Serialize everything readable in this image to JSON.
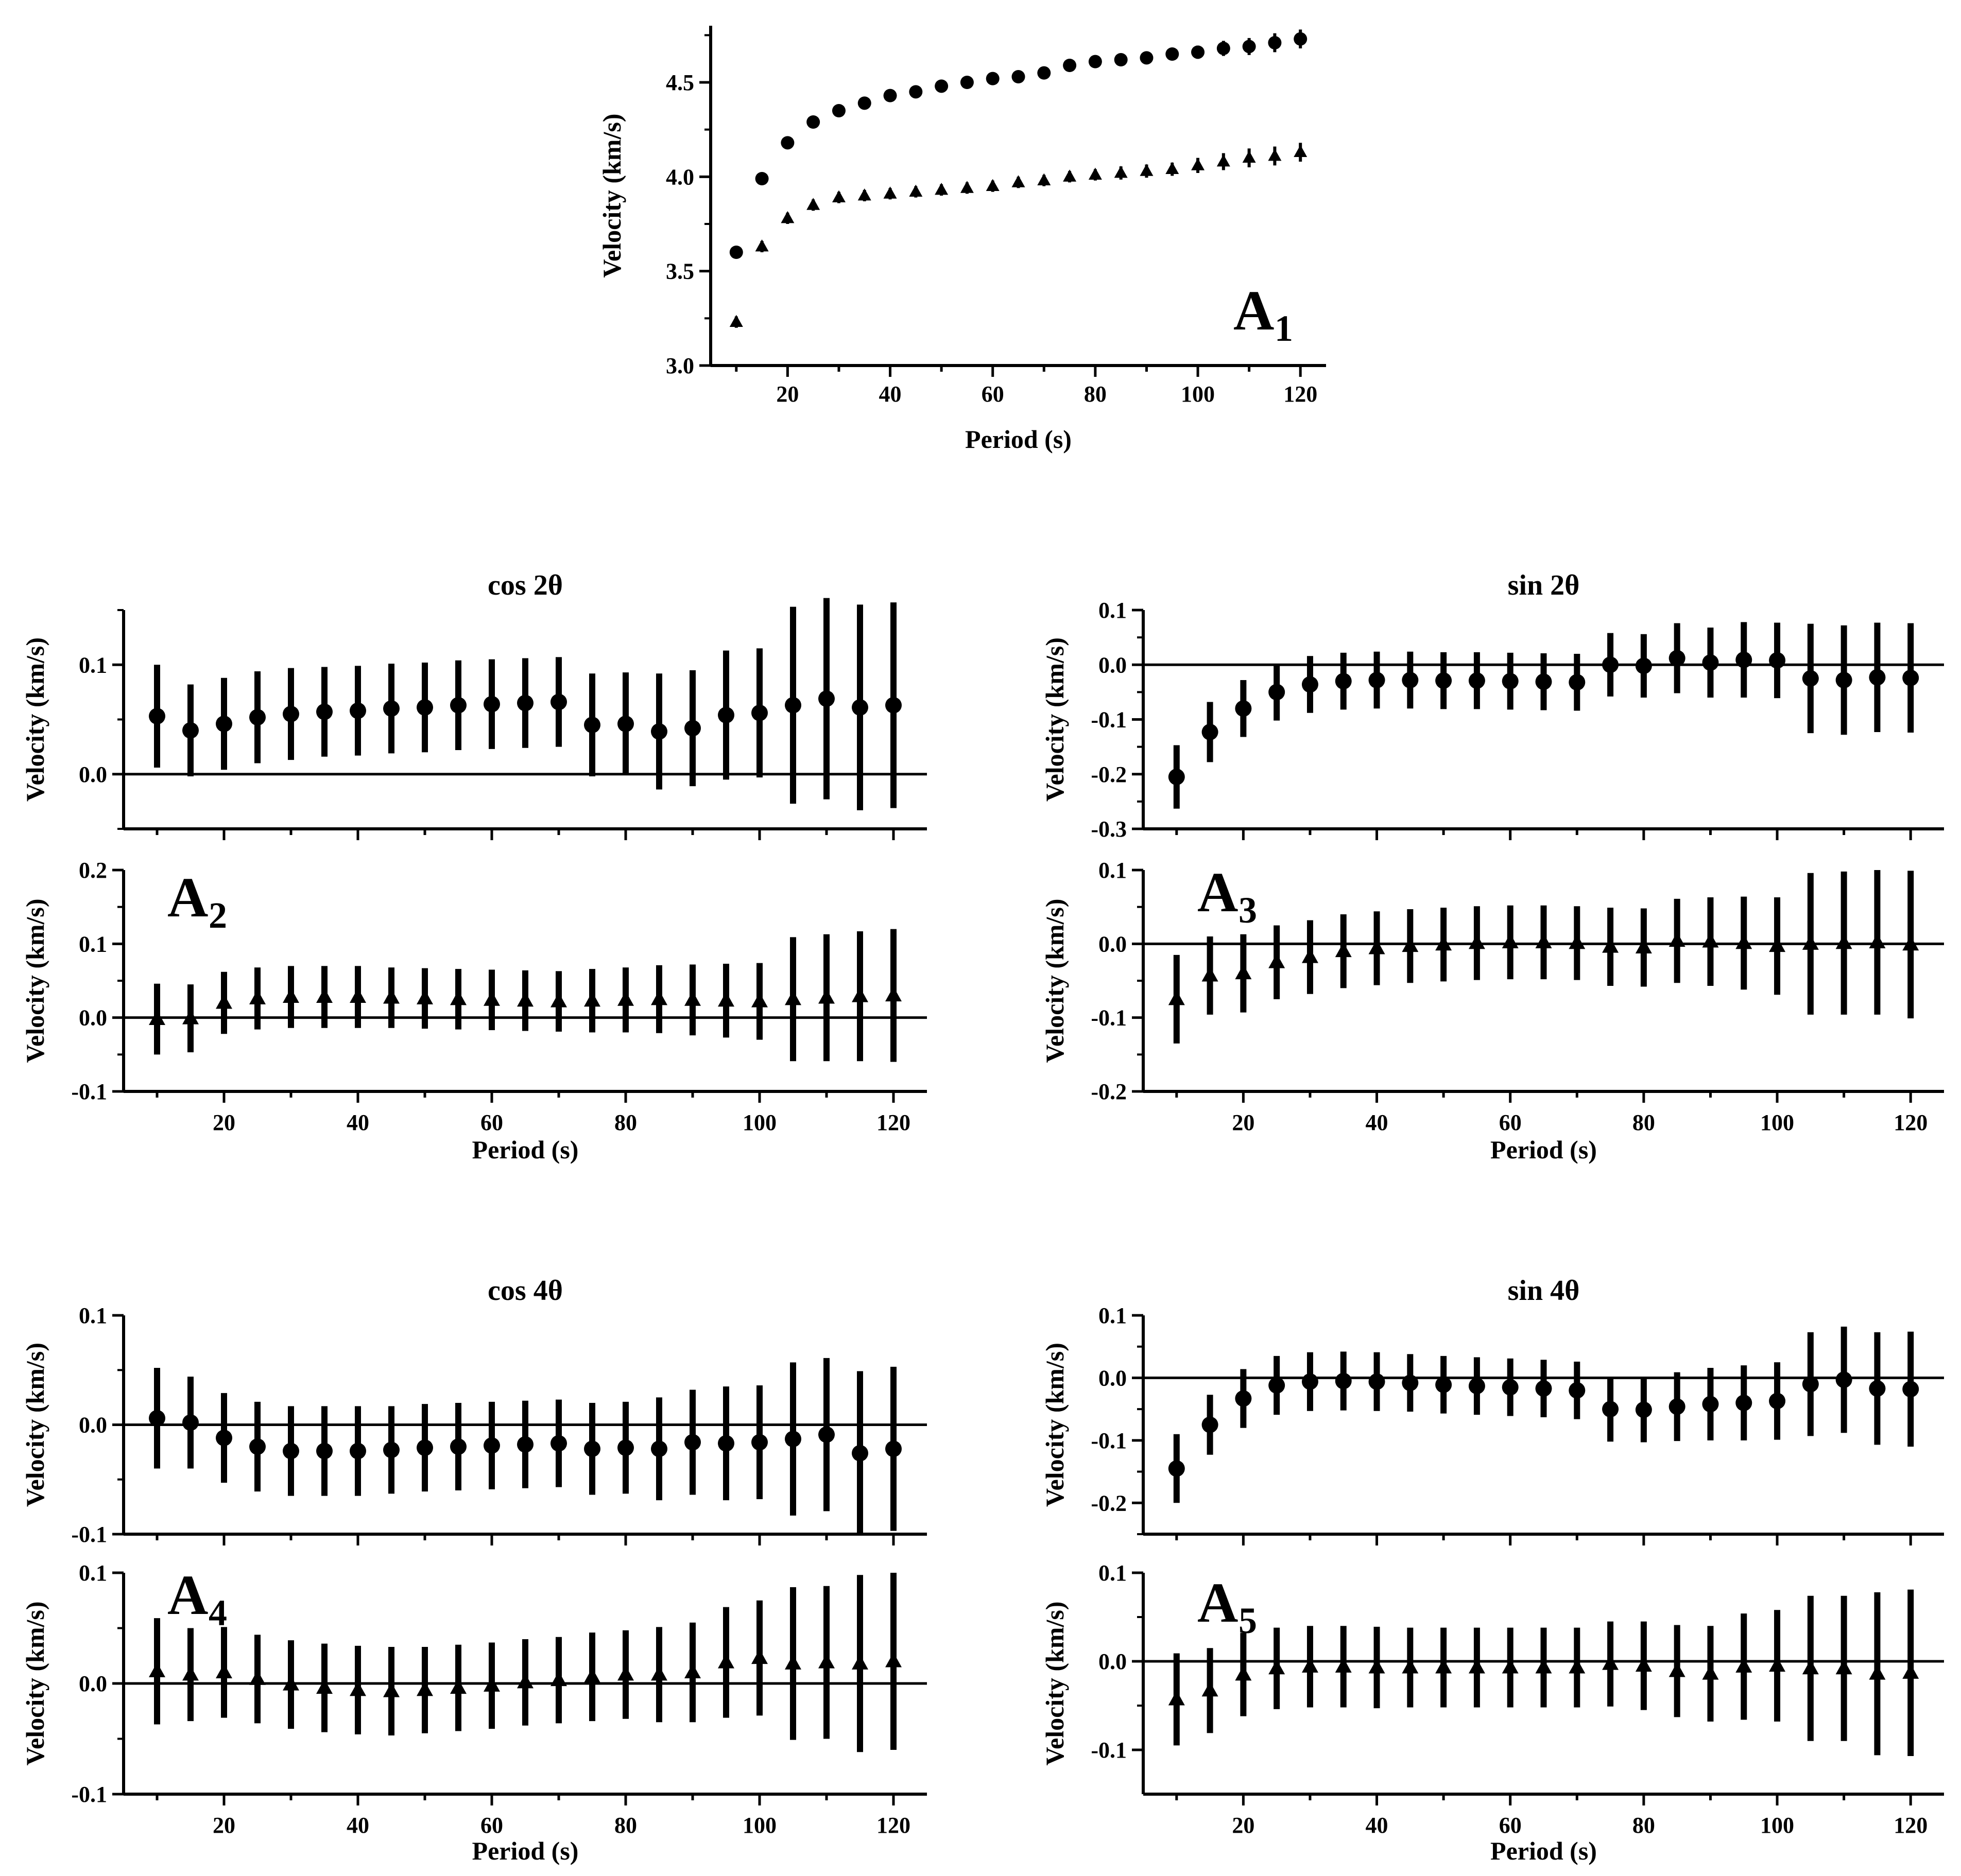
{
  "chart_data": [
    {
      "id": "A1",
      "type": "scatter",
      "title": "",
      "panel_label": "A",
      "panel_label_sub": "1",
      "xlabel": "Period (s)",
      "ylabel": "Velocity (km/s)",
      "xlim": [
        5,
        125
      ],
      "ylim": [
        3.0,
        4.8
      ],
      "xticks": [
        20,
        40,
        60,
        80,
        100,
        120
      ],
      "yticks": [
        3.0,
        3.5,
        4.0,
        4.5
      ],
      "x": [
        10,
        15,
        20,
        25,
        30,
        35,
        40,
        45,
        50,
        55,
        60,
        65,
        70,
        75,
        80,
        85,
        90,
        95,
        100,
        105,
        110,
        115,
        120
      ],
      "series": [
        {
          "name": "circles",
          "marker": "circle",
          "values": [
            3.6,
            3.99,
            4.18,
            4.29,
            4.35,
            4.39,
            4.43,
            4.45,
            4.48,
            4.5,
            4.52,
            4.53,
            4.55,
            4.59,
            4.61,
            4.62,
            4.63,
            4.65,
            4.66,
            4.68,
            4.69,
            4.71,
            4.73
          ],
          "errors": [
            0.02,
            0.02,
            0.02,
            0.02,
            0.02,
            0.02,
            0.02,
            0.02,
            0.02,
            0.02,
            0.02,
            0.02,
            0.02,
            0.025,
            0.025,
            0.03,
            0.03,
            0.03,
            0.035,
            0.04,
            0.045,
            0.05,
            0.05
          ]
        },
        {
          "name": "triangles",
          "marker": "triangle",
          "values": [
            3.23,
            3.63,
            3.78,
            3.85,
            3.89,
            3.9,
            3.91,
            3.92,
            3.93,
            3.94,
            3.95,
            3.97,
            3.98,
            4.0,
            4.01,
            4.02,
            4.03,
            4.04,
            4.06,
            4.08,
            4.1,
            4.11,
            4.13
          ],
          "errors": [
            0.03,
            0.03,
            0.03,
            0.03,
            0.03,
            0.03,
            0.03,
            0.03,
            0.03,
            0.03,
            0.03,
            0.03,
            0.03,
            0.03,
            0.03,
            0.035,
            0.035,
            0.035,
            0.04,
            0.045,
            0.05,
            0.05,
            0.05
          ]
        }
      ]
    },
    {
      "id": "A2-top",
      "type": "scatter",
      "title": "cos 2θ",
      "xlabel": "",
      "ylabel": "Velocity (km/s)",
      "xlim": [
        5,
        125
      ],
      "ylim": [
        -0.05,
        0.15
      ],
      "yticks": [
        0.0,
        0.1
      ],
      "zero_line": true,
      "x": [
        10,
        15,
        20,
        25,
        30,
        35,
        40,
        45,
        50,
        55,
        60,
        65,
        70,
        75,
        80,
        85,
        90,
        95,
        100,
        105,
        110,
        115,
        120
      ],
      "series": [
        {
          "name": "circles",
          "marker": "circle",
          "values": [
            0.053,
            0.04,
            0.046,
            0.052,
            0.055,
            0.057,
            0.058,
            0.06,
            0.061,
            0.063,
            0.064,
            0.065,
            0.066,
            0.045,
            0.046,
            0.039,
            0.042,
            0.054,
            0.056,
            0.063,
            0.069,
            0.061,
            0.063
          ],
          "errors": [
            0.047,
            0.042,
            0.042,
            0.042,
            0.042,
            0.041,
            0.041,
            0.041,
            0.041,
            0.041,
            0.041,
            0.041,
            0.041,
            0.047,
            0.047,
            0.053,
            0.053,
            0.059,
            0.059,
            0.09,
            0.092,
            0.094,
            0.094
          ]
        }
      ]
    },
    {
      "id": "A2-bottom",
      "type": "scatter",
      "title": "",
      "panel_label": "A",
      "panel_label_sub": "2",
      "xlabel": "Period (s)",
      "ylabel": "Velocity (km/s)",
      "xlim": [
        5,
        125
      ],
      "ylim": [
        -0.1,
        0.2
      ],
      "xticks": [
        20,
        40,
        60,
        80,
        100,
        120
      ],
      "yticks": [
        -0.1,
        0.0,
        0.1,
        0.2
      ],
      "zero_line": true,
      "x": [
        10,
        15,
        20,
        25,
        30,
        35,
        40,
        45,
        50,
        55,
        60,
        65,
        70,
        75,
        80,
        85,
        90,
        95,
        100,
        105,
        110,
        115,
        120
      ],
      "series": [
        {
          "name": "triangles",
          "marker": "triangle",
          "values": [
            -0.002,
            -0.001,
            0.02,
            0.026,
            0.028,
            0.028,
            0.028,
            0.027,
            0.026,
            0.025,
            0.024,
            0.023,
            0.022,
            0.023,
            0.024,
            0.025,
            0.024,
            0.023,
            0.022,
            0.025,
            0.027,
            0.029,
            0.03
          ],
          "errors": [
            0.048,
            0.046,
            0.042,
            0.042,
            0.042,
            0.042,
            0.042,
            0.041,
            0.041,
            0.041,
            0.041,
            0.041,
            0.041,
            0.043,
            0.044,
            0.046,
            0.048,
            0.05,
            0.052,
            0.084,
            0.086,
            0.088,
            0.09
          ]
        }
      ]
    },
    {
      "id": "A3-top",
      "type": "scatter",
      "title": "sin 2θ",
      "xlabel": "",
      "ylabel": "Velocity (km/s)",
      "xlim": [
        5,
        125
      ],
      "ylim": [
        -0.3,
        0.1
      ],
      "yticks": [
        -0.3,
        -0.2,
        -0.1,
        0.0,
        0.1
      ],
      "zero_line": true,
      "x": [
        10,
        15,
        20,
        25,
        30,
        35,
        40,
        45,
        50,
        55,
        60,
        65,
        70,
        75,
        80,
        85,
        90,
        95,
        100,
        105,
        110,
        115,
        120
      ],
      "series": [
        {
          "name": "circles",
          "marker": "circle",
          "values": [
            -0.205,
            -0.123,
            -0.08,
            -0.05,
            -0.036,
            -0.03,
            -0.028,
            -0.028,
            -0.029,
            -0.029,
            -0.03,
            -0.031,
            -0.032,
            0.0,
            -0.002,
            0.012,
            0.004,
            0.009,
            0.008,
            -0.025,
            -0.028,
            -0.023,
            -0.024
          ]
        },
        {
          "name": "errors",
          "marker": "none",
          "values": [
            0.058,
            0.055,
            0.052,
            0.052,
            0.052,
            0.052,
            0.052,
            0.052,
            0.052,
            0.052,
            0.052,
            0.052,
            0.052,
            0.058,
            0.058,
            0.064,
            0.064,
            0.069,
            0.069,
            0.1,
            0.1,
            0.1,
            0.1
          ]
        }
      ]
    },
    {
      "id": "A3-bottom",
      "type": "scatter",
      "title": "",
      "panel_label": "A",
      "panel_label_sub": "3",
      "xlabel": "Period (s)",
      "ylabel": "Velocity (km/s)",
      "xlim": [
        5,
        125
      ],
      "ylim": [
        -0.2,
        0.1
      ],
      "xticks": [
        20,
        40,
        60,
        80,
        100,
        120
      ],
      "yticks": [
        -0.2,
        -0.1,
        0.0,
        0.1
      ],
      "zero_line": true,
      "x": [
        10,
        15,
        20,
        25,
        30,
        35,
        40,
        45,
        50,
        55,
        60,
        65,
        70,
        75,
        80,
        85,
        90,
        95,
        100,
        105,
        110,
        115,
        120
      ],
      "series": [
        {
          "name": "triangles",
          "marker": "triangle",
          "values": [
            -0.075,
            -0.043,
            -0.04,
            -0.025,
            -0.018,
            -0.01,
            -0.006,
            -0.003,
            -0.001,
            0.001,
            0.002,
            0.002,
            0.001,
            -0.004,
            -0.005,
            0.004,
            0.003,
            0.001,
            -0.003,
            0.0,
            0.001,
            0.002,
            -0.001
          ]
        },
        {
          "name": "errors",
          "marker": "none",
          "values": [
            0.06,
            0.053,
            0.053,
            0.05,
            0.05,
            0.05,
            0.05,
            0.05,
            0.05,
            0.05,
            0.05,
            0.05,
            0.05,
            0.053,
            0.053,
            0.057,
            0.06,
            0.063,
            0.066,
            0.096,
            0.097,
            0.098,
            0.1
          ]
        }
      ]
    },
    {
      "id": "A4-top",
      "type": "scatter",
      "title": "cos 4θ",
      "xlabel": "",
      "ylabel": "Velocity (km/s)",
      "xlim": [
        5,
        125
      ],
      "ylim": [
        -0.1,
        0.1
      ],
      "yticks": [
        -0.1,
        0.0,
        0.1
      ],
      "zero_line": true,
      "x": [
        10,
        15,
        20,
        25,
        30,
        35,
        40,
        45,
        50,
        55,
        60,
        65,
        70,
        75,
        80,
        85,
        90,
        95,
        100,
        105,
        110,
        115,
        120
      ],
      "series": [
        {
          "name": "circles",
          "marker": "circle",
          "values": [
            0.006,
            0.002,
            -0.012,
            -0.02,
            -0.024,
            -0.024,
            -0.024,
            -0.023,
            -0.021,
            -0.02,
            -0.019,
            -0.018,
            -0.017,
            -0.022,
            -0.021,
            -0.022,
            -0.016,
            -0.017,
            -0.016,
            -0.013,
            -0.009,
            -0.026,
            -0.022
          ]
        },
        {
          "name": "errors",
          "marker": "none",
          "values": [
            0.046,
            0.042,
            0.041,
            0.041,
            0.041,
            0.041,
            0.041,
            0.04,
            0.04,
            0.04,
            0.04,
            0.04,
            0.04,
            0.042,
            0.042,
            0.047,
            0.048,
            0.052,
            0.052,
            0.07,
            0.07,
            0.075,
            0.075
          ]
        }
      ]
    },
    {
      "id": "A4-bottom",
      "type": "scatter",
      "title": "",
      "panel_label": "A",
      "panel_label_sub": "4",
      "xlabel": "Period (s)",
      "ylabel": "Velocity (km/s)",
      "xlim": [
        5,
        125
      ],
      "ylim": [
        -0.1,
        0.1
      ],
      "xticks": [
        20,
        40,
        60,
        80,
        100,
        120
      ],
      "yticks": [
        -0.1,
        0.0,
        0.1
      ],
      "zero_line": true,
      "x": [
        10,
        15,
        20,
        25,
        30,
        35,
        40,
        45,
        50,
        55,
        60,
        65,
        70,
        75,
        80,
        85,
        90,
        95,
        100,
        105,
        110,
        115,
        120
      ],
      "series": [
        {
          "name": "triangles",
          "marker": "triangle",
          "values": [
            0.011,
            0.008,
            0.01,
            0.004,
            -0.001,
            -0.004,
            -0.006,
            -0.007,
            -0.006,
            -0.004,
            -0.002,
            0.001,
            0.003,
            0.006,
            0.008,
            0.008,
            0.01,
            0.019,
            0.023,
            0.018,
            0.019,
            0.018,
            0.02
          ]
        },
        {
          "name": "errors",
          "marker": "none",
          "values": [
            0.048,
            0.042,
            0.041,
            0.04,
            0.04,
            0.04,
            0.04,
            0.04,
            0.039,
            0.039,
            0.039,
            0.039,
            0.039,
            0.04,
            0.04,
            0.043,
            0.045,
            0.05,
            0.052,
            0.069,
            0.069,
            0.08,
            0.08
          ]
        }
      ]
    },
    {
      "id": "A5-top",
      "type": "scatter",
      "title": "sin 4θ",
      "xlabel": "",
      "ylabel": "Velocity (km/s)",
      "xlim": [
        5,
        125
      ],
      "ylim": [
        -0.25,
        0.1
      ],
      "yticks": [
        -0.2,
        -0.1,
        0.0,
        0.1
      ],
      "zero_line": true,
      "x": [
        10,
        15,
        20,
        25,
        30,
        35,
        40,
        45,
        50,
        55,
        60,
        65,
        70,
        75,
        80,
        85,
        90,
        95,
        100,
        105,
        110,
        115,
        120
      ],
      "series": [
        {
          "name": "circles",
          "marker": "circle",
          "values": [
            -0.145,
            -0.075,
            -0.033,
            -0.012,
            -0.006,
            -0.005,
            -0.006,
            -0.008,
            -0.011,
            -0.013,
            -0.015,
            -0.017,
            -0.02,
            -0.05,
            -0.051,
            -0.046,
            -0.042,
            -0.04,
            -0.037,
            -0.01,
            -0.003,
            -0.017,
            -0.018
          ]
        },
        {
          "name": "errors",
          "marker": "none",
          "values": [
            0.055,
            0.048,
            0.047,
            0.047,
            0.047,
            0.047,
            0.047,
            0.046,
            0.046,
            0.046,
            0.046,
            0.046,
            0.046,
            0.052,
            0.052,
            0.055,
            0.058,
            0.06,
            0.062,
            0.083,
            0.085,
            0.09,
            0.092
          ]
        }
      ]
    },
    {
      "id": "A5-bottom",
      "type": "scatter",
      "title": "",
      "panel_label": "A",
      "panel_label_sub": "5",
      "xlabel": "Period (s)",
      "ylabel": "Velocity (km/s)",
      "xlim": [
        5,
        125
      ],
      "ylim": [
        -0.15,
        0.1
      ],
      "xticks": [
        20,
        40,
        60,
        80,
        100,
        120
      ],
      "yticks": [
        -0.1,
        0.0,
        0.1
      ],
      "zero_line": true,
      "x": [
        10,
        15,
        20,
        25,
        30,
        35,
        40,
        45,
        50,
        55,
        60,
        65,
        70,
        75,
        80,
        85,
        90,
        95,
        100,
        105,
        110,
        115,
        120
      ],
      "series": [
        {
          "name": "triangles",
          "marker": "triangle",
          "values": [
            -0.043,
            -0.033,
            -0.015,
            -0.008,
            -0.006,
            -0.006,
            -0.007,
            -0.007,
            -0.007,
            -0.007,
            -0.007,
            -0.007,
            -0.007,
            -0.003,
            -0.005,
            -0.011,
            -0.014,
            -0.006,
            -0.005,
            -0.008,
            -0.008,
            -0.014,
            -0.013
          ]
        },
        {
          "name": "errors",
          "marker": "none",
          "values": [
            0.052,
            0.048,
            0.047,
            0.046,
            0.046,
            0.046,
            0.046,
            0.045,
            0.045,
            0.045,
            0.045,
            0.045,
            0.045,
            0.048,
            0.05,
            0.052,
            0.054,
            0.06,
            0.063,
            0.082,
            0.082,
            0.092,
            0.094
          ]
        }
      ]
    }
  ]
}
